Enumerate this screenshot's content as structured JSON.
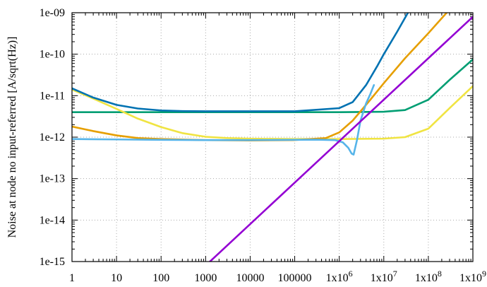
{
  "chart_data": {
    "type": "line",
    "title": "",
    "xlabel": "",
    "ylabel": "Noise at node no input-referred [A/sqrt(Hz)]",
    "x_scale": "log",
    "y_scale": "log",
    "xlim": [
      1,
      1000000000
    ],
    "ylim": [
      1e-15,
      1e-09
    ],
    "grid": true,
    "legend": "none",
    "x_ticks": [
      {
        "value": 1,
        "label": "1"
      },
      {
        "value": 10,
        "label": "10"
      },
      {
        "value": 100,
        "label": "100"
      },
      {
        "value": 1000,
        "label": "1000"
      },
      {
        "value": 10000,
        "label": "10000"
      },
      {
        "value": 100000,
        "label": "100000"
      },
      {
        "value": 1000000,
        "label": "1x10",
        "exp": "6"
      },
      {
        "value": 10000000,
        "label": "1x10",
        "exp": "7"
      },
      {
        "value": 100000000,
        "label": "1x10",
        "exp": "8"
      },
      {
        "value": 1000000000,
        "label": "1x10",
        "exp": "9"
      }
    ],
    "y_ticks": [
      {
        "value": 1e-15,
        "label": "1e-15"
      },
      {
        "value": 1e-14,
        "label": "1e-14"
      },
      {
        "value": 1e-13,
        "label": "1e-13"
      },
      {
        "value": 1e-12,
        "label": "1e-12"
      },
      {
        "value": 1e-11,
        "label": "1e-11"
      },
      {
        "value": 1e-10,
        "label": "1e-10"
      },
      {
        "value": 1e-09,
        "label": "1e-09"
      }
    ],
    "series": [
      {
        "color": "#009e73",
        "x": [
          1,
          10,
          100,
          1000,
          10000,
          100000,
          1000000,
          10000000,
          30000000,
          100000000,
          300000000,
          1000000000
        ],
        "y": [
          4e-12,
          4e-12,
          4e-12,
          4e-12,
          4e-12,
          4e-12,
          4e-12,
          4.1e-12,
          4.5e-12,
          8e-12,
          2.4e-11,
          7.5e-11
        ]
      },
      {
        "color": "#f0e442",
        "x": [
          1,
          3,
          10,
          30,
          100,
          300,
          1000,
          3000,
          10000,
          100000,
          1000000,
          10000000,
          30000000,
          100000000,
          300000000,
          1000000000
        ],
        "y": [
          1.4e-11,
          8.5e-12,
          4.8e-12,
          2.8e-12,
          1.75e-12,
          1.25e-12,
          1.02e-12,
          9.5e-13,
          9.2e-13,
          9e-13,
          9e-13,
          9.2e-13,
          1e-12,
          1.6e-12,
          5e-12,
          1.7e-11
        ]
      },
      {
        "color": "#e69f00",
        "x": [
          1,
          3,
          10,
          30,
          100,
          1000,
          10000,
          100000,
          500000,
          1000000,
          2000000,
          5000000,
          10000000,
          30000000,
          100000000,
          300000000,
          1000000000
        ],
        "y": [
          1.8e-12,
          1.4e-12,
          1.1e-12,
          9.5e-13,
          9e-13,
          8.5e-13,
          8.3e-13,
          8.5e-13,
          9.5e-13,
          1.3e-12,
          2.5e-12,
          8e-12,
          2e-11,
          8e-11,
          3.2e-10,
          1.2e-09,
          4e-09
        ]
      },
      {
        "color": "#56b4e9",
        "x": [
          1,
          10,
          100,
          1000,
          10000,
          100000,
          300000,
          800000,
          1200000,
          1600000,
          1900000,
          2100000,
          2500000,
          3000000,
          4000000,
          5000000,
          6000000
        ],
        "y": [
          9e-13,
          8.8e-13,
          8.6e-13,
          8.5e-13,
          8.5e-13,
          8.6e-13,
          8.7e-13,
          8.5e-13,
          7.5e-13,
          5.5e-13,
          4e-13,
          3.8e-13,
          8.5e-13,
          2.5e-12,
          6.5e-12,
          1.1e-11,
          1.8e-11
        ]
      },
      {
        "color": "#0072b2",
        "x": [
          1,
          3,
          10,
          30,
          100,
          300,
          1000,
          10000,
          100000,
          1000000,
          2000000,
          4000000,
          7000000,
          10000000,
          20000000,
          40000000,
          100000000
        ],
        "y": [
          1.5e-11,
          9e-12,
          6e-12,
          4.9e-12,
          4.4e-12,
          4.25e-12,
          4.2e-12,
          4.2e-12,
          4.2e-12,
          5e-12,
          7e-12,
          1.8e-11,
          5e-11,
          1e-10,
          3.5e-10,
          1.3e-09,
          7e-09
        ]
      },
      {
        "color": "#9400d3",
        "x": [
          1000,
          1000000000
        ],
        "y": [
          8e-16,
          8e-10
        ]
      }
    ]
  }
}
